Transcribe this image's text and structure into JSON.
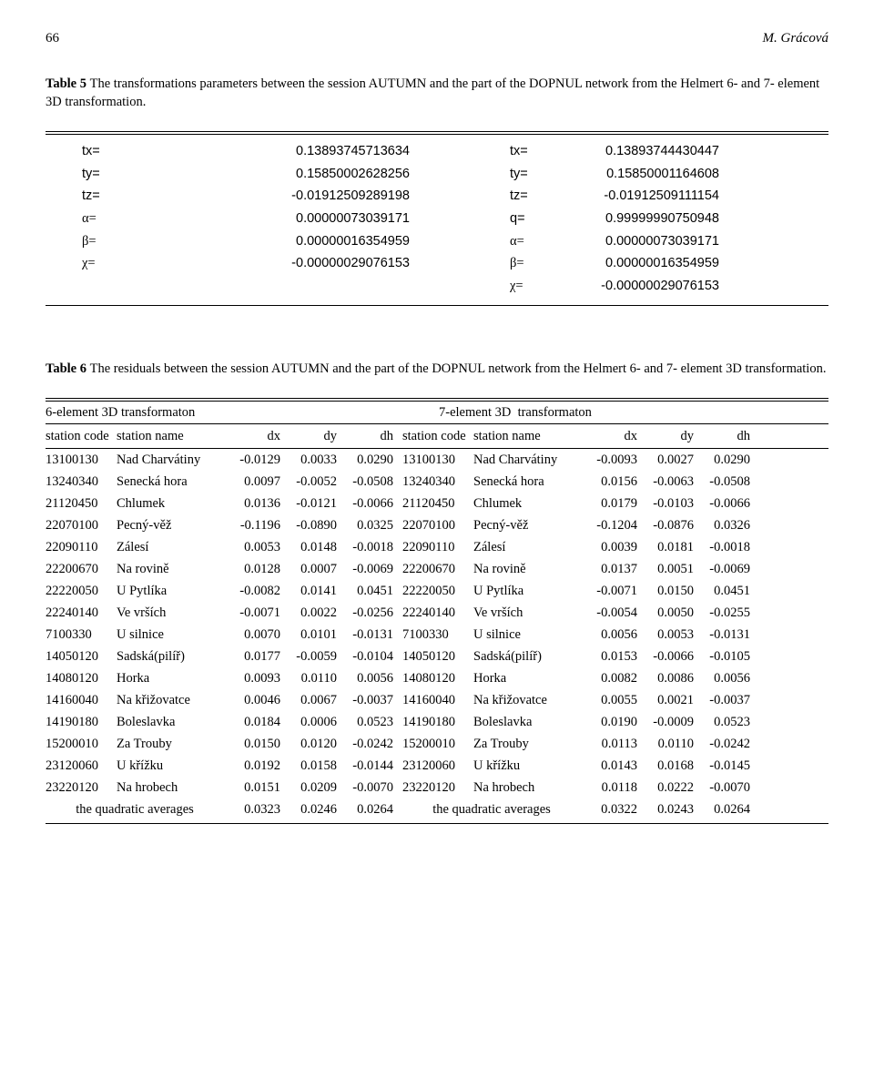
{
  "header": {
    "page_no": "66",
    "author": "M. Grácová"
  },
  "table5": {
    "caption_label": "Table 5",
    "caption_text": "The transformations parameters between the session AUTUMN and the part of the DOPNUL network from the Helmert 6- and 7- element 3D transformation.",
    "left": [
      {
        "k": "tx=",
        "v": "0.13893745713634",
        "g": false
      },
      {
        "k": "ty=",
        "v": "0.15850002628256",
        "g": false
      },
      {
        "k": "tz=",
        "v": "-0.01912509289198",
        "g": false
      },
      {
        "k": "α=",
        "v": "0.00000073039171",
        "g": true
      },
      {
        "k": "β=",
        "v": "0.00000016354959",
        "g": true
      },
      {
        "k": "χ=",
        "v": "-0.00000029076153",
        "g": true
      }
    ],
    "right": [
      {
        "k": "tx=",
        "v": "0.13893744430447",
        "g": false
      },
      {
        "k": "ty=",
        "v": "0.15850001164608",
        "g": false
      },
      {
        "k": "tz=",
        "v": "-0.01912509111154",
        "g": false
      },
      {
        "k": "q=",
        "v": "0.99999990750948",
        "g": false
      },
      {
        "k": "α=",
        "v": "0.00000073039171",
        "g": true
      },
      {
        "k": "β=",
        "v": "0.00000016354959",
        "g": true
      },
      {
        "k": "χ=",
        "v": "-0.00000029076153",
        "g": true
      }
    ]
  },
  "table6": {
    "caption_label": "Table 6",
    "caption_text": "The residuals between the session AUTUMN and the part of the DOPNUL network from the Helmert 6- and 7- element 3D transformation.",
    "head_left": "6-element 3D transformaton",
    "head_right_a": "7-element 3D",
    "head_right_b": "transformaton",
    "cols": [
      "station code",
      "station name",
      "dx",
      "dy",
      "dh",
      "station code",
      "station name",
      "dx",
      "dy",
      "dh"
    ],
    "rows": [
      [
        "13100130",
        "Nad Charvátiny",
        "-0.0129",
        "0.0033",
        "0.0290",
        "13100130",
        "Nad Charvátiny",
        "-0.0093",
        "0.0027",
        "0.0290"
      ],
      [
        "13240340",
        "Senecká hora",
        "0.0097",
        "-0.0052",
        "-0.0508",
        "13240340",
        "Senecká hora",
        "0.0156",
        "-0.0063",
        "-0.0508"
      ],
      [
        "21120450",
        "Chlumek",
        "0.0136",
        "-0.0121",
        "-0.0066",
        "21120450",
        "Chlumek",
        "0.0179",
        "-0.0103",
        "-0.0066"
      ],
      [
        "22070100",
        "Pecný-věž",
        "-0.1196",
        "-0.0890",
        "0.0325",
        "22070100",
        "Pecný-věž",
        "-0.1204",
        "-0.0876",
        "0.0326"
      ],
      [
        "22090110",
        "Zálesí",
        "0.0053",
        "0.0148",
        "-0.0018",
        "22090110",
        "Zálesí",
        "0.0039",
        "0.0181",
        "-0.0018"
      ],
      [
        "22200670",
        "Na rovině",
        "0.0128",
        "0.0007",
        "-0.0069",
        "22200670",
        "Na rovině",
        "0.0137",
        "0.0051",
        "-0.0069"
      ],
      [
        "22220050",
        "U Pytlíka",
        "-0.0082",
        "0.0141",
        "0.0451",
        "22220050",
        "U Pytlíka",
        "-0.0071",
        "0.0150",
        "0.0451"
      ],
      [
        "22240140",
        "Ve vrších",
        "-0.0071",
        "0.0022",
        "-0.0256",
        "22240140",
        "Ve vrších",
        "-0.0054",
        "0.0050",
        "-0.0255"
      ],
      [
        "7100330",
        "U silnice",
        "0.0070",
        "0.0101",
        "-0.0131",
        "7100330",
        "U silnice",
        "0.0056",
        "0.0053",
        "-0.0131"
      ],
      [
        "14050120",
        "Sadská(pilíř)",
        "0.0177",
        "-0.0059",
        "-0.0104",
        "14050120",
        "Sadská(pilíř)",
        "0.0153",
        "-0.0066",
        "-0.0105"
      ],
      [
        "14080120",
        "Horka",
        "0.0093",
        "0.0110",
        "0.0056",
        "14080120",
        "Horka",
        "0.0082",
        "0.0086",
        "0.0056"
      ],
      [
        "14160040",
        "Na křižovatce",
        "0.0046",
        "0.0067",
        "-0.0037",
        "14160040",
        "Na křižovatce",
        "0.0055",
        "0.0021",
        "-0.0037"
      ],
      [
        "14190180",
        "Boleslavka",
        "0.0184",
        "0.0006",
        "0.0523",
        "14190180",
        "Boleslavka",
        "0.0190",
        "-0.0009",
        "0.0523"
      ],
      [
        "15200010",
        "Za Trouby",
        "0.0150",
        "0.0120",
        "-0.0242",
        "15200010",
        "Za Trouby",
        "0.0113",
        "0.0110",
        "-0.0242"
      ],
      [
        "23120060",
        "U křížku",
        "0.0192",
        "0.0158",
        "-0.0144",
        "23120060",
        "U křížku",
        "0.0143",
        "0.0168",
        "-0.0145"
      ],
      [
        "23220120",
        "Na hrobech",
        "0.0151",
        "0.0209",
        "-0.0070",
        "23220120",
        "Na hrobech",
        "0.0118",
        "0.0222",
        "-0.0070"
      ]
    ],
    "avg_label": "the quadratic averages",
    "avg_left": [
      "0.0323",
      "0.0246",
      "0.0264"
    ],
    "avg_right": [
      "0.0322",
      "0.0243",
      "0.0264"
    ]
  }
}
